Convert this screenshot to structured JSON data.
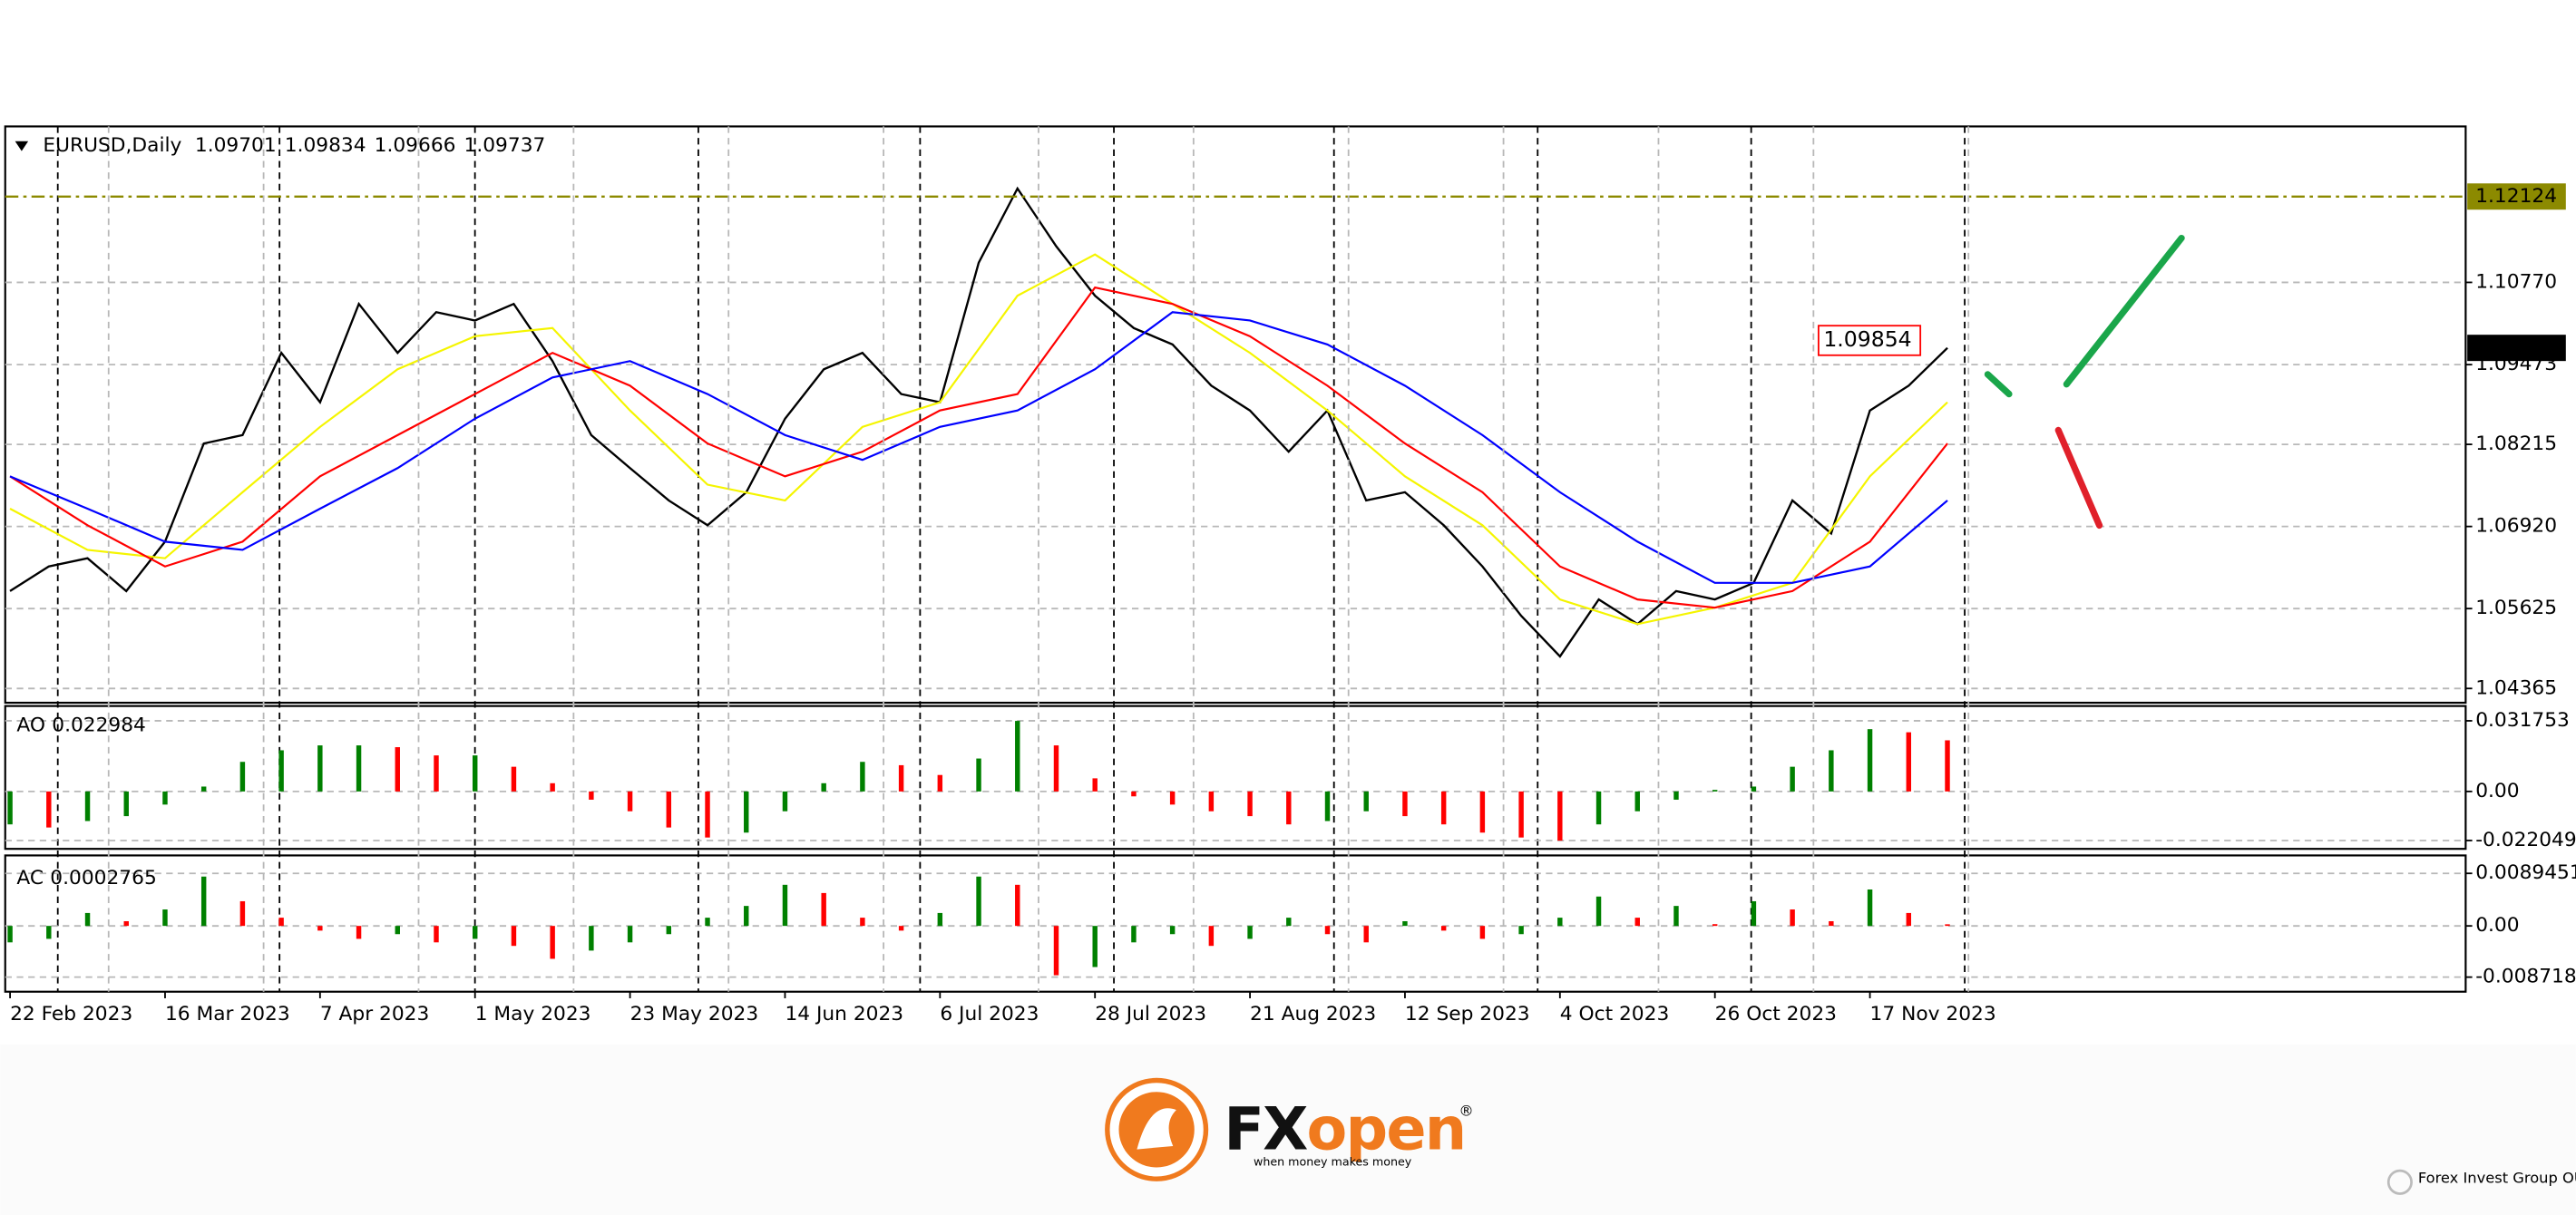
{
  "chart_data": [
    {
      "type": "line",
      "title": "EURUSD,Daily",
      "last_ohlc": [
        1.09701,
        1.09834,
        1.09666,
        1.09737
      ],
      "xlim": [
        -0.5,
        253.5
      ],
      "ylim": [
        1.0414,
        1.1323
      ],
      "yticks": [
        {
          "value": 1.1077,
          "label": "1.10770"
        },
        1.09473,
        1.08215,
        {
          "value": 1.0692,
          "label": "1.06920"
        },
        1.05625,
        1.04365
      ],
      "grid": true,
      "level": 1.12124,
      "level_color": "#8c8a00",
      "marker": 1.09854,
      "marker_color": "#ff0000",
      "series": [
        {
          "color": "#000000",
          "x": [
            0,
            4,
            8,
            12,
            16,
            20,
            24,
            28,
            32,
            36,
            40,
            44,
            48,
            52,
            56,
            60,
            64,
            68,
            72,
            76,
            80,
            84,
            88,
            92,
            96,
            100,
            104,
            108,
            112,
            116,
            120,
            124,
            128,
            132,
            136,
            140,
            144,
            148,
            152,
            156,
            160,
            164,
            168,
            172,
            176,
            180,
            184,
            188,
            192,
            196,
            200
          ],
          "values": [
            1.059,
            1.0629,
            1.0642,
            1.059,
            1.0668,
            1.0823,
            1.0836,
            1.0966,
            1.0888,
            1.1043,
            1.0966,
            1.103,
            1.1017,
            1.1043,
            1.0953,
            1.0836,
            1.0784,
            1.0733,
            1.0694,
            1.0746,
            1.0862,
            1.094,
            1.0966,
            1.0901,
            1.0888,
            1.1108,
            1.1225,
            1.1134,
            1.1056,
            1.1005,
            1.0979,
            1.0914,
            1.0875,
            1.081,
            1.0875,
            1.0733,
            1.0746,
            1.0694,
            1.0629,
            1.0551,
            1.0487,
            1.0577,
            1.0538,
            1.059,
            1.0577,
            1.0603,
            1.0733,
            1.0681,
            1.0875,
            1.0914,
            1.09737
          ]
        },
        {
          "color": "#f5f500",
          "x": [
            0,
            8,
            16,
            24,
            32,
            40,
            48,
            56,
            64,
            72,
            80,
            88,
            96,
            104,
            112,
            120,
            128,
            136,
            144,
            152,
            160,
            168,
            176,
            184,
            192,
            200
          ],
          "values": [
            1.072,
            1.0655,
            1.0642,
            1.0746,
            1.0849,
            1.094,
            1.0992,
            1.1005,
            1.0875,
            1.0758,
            1.0733,
            1.0849,
            1.0888,
            1.1056,
            1.1121,
            1.1043,
            1.0966,
            1.0875,
            1.0771,
            1.0694,
            1.0577,
            1.0538,
            1.0564,
            1.0603,
            1.0771,
            1.0888
          ]
        },
        {
          "color": "#ff0000",
          "x": [
            0,
            8,
            16,
            24,
            32,
            40,
            48,
            56,
            64,
            72,
            80,
            88,
            96,
            104,
            112,
            120,
            128,
            136,
            144,
            152,
            160,
            168,
            176,
            184,
            192,
            200
          ],
          "values": [
            1.0771,
            1.0694,
            1.0629,
            1.0668,
            1.0771,
            1.0836,
            1.0901,
            1.0966,
            1.0914,
            1.0823,
            1.0771,
            1.081,
            1.0875,
            1.0901,
            1.1069,
            1.1043,
            1.0992,
            1.0914,
            1.0823,
            1.0746,
            1.0629,
            1.0577,
            1.0564,
            1.059,
            1.0668,
            1.0823
          ]
        },
        {
          "color": "#0000ff",
          "x": [
            0,
            8,
            16,
            24,
            32,
            40,
            48,
            56,
            64,
            72,
            80,
            88,
            96,
            104,
            112,
            120,
            128,
            136,
            144,
            152,
            160,
            168,
            176,
            184,
            192,
            200
          ],
          "values": [
            1.0771,
            1.072,
            1.0668,
            1.0655,
            1.072,
            1.0784,
            1.0862,
            1.0927,
            1.0953,
            1.0901,
            1.0836,
            1.0797,
            1.0849,
            1.0875,
            1.094,
            1.103,
            1.1017,
            1.0979,
            1.0914,
            1.0836,
            1.0746,
            1.0668,
            1.0603,
            1.0603,
            1.0629,
            1.0733
          ]
        }
      ]
    },
    {
      "type": "bar",
      "title": "AO",
      "current": 0.022984,
      "up_color": "#008000",
      "down_color": "#ff0000",
      "xlim": [
        -0.5,
        253.5
      ],
      "ylim": [
        -0.0258,
        0.0384
      ],
      "yticks": [
        0.031753,
        {
          "value": 0,
          "label": "0.00"
        },
        -0.022049
      ],
      "grid": true,
      "x": [
        0,
        4,
        8,
        12,
        16,
        20,
        24,
        28,
        32,
        36,
        40,
        44,
        48,
        52,
        56,
        60,
        64,
        68,
        72,
        76,
        80,
        84,
        88,
        92,
        96,
        100,
        104,
        108,
        112,
        116,
        120,
        124,
        128,
        132,
        136,
        140,
        144,
        148,
        152,
        156,
        160,
        164,
        168,
        172,
        176,
        180,
        184,
        188,
        192,
        196,
        200
      ],
      "values": [
        -0.0148,
        -0.0162,
        -0.0133,
        -0.0111,
        -0.0059,
        0.0022,
        0.0133,
        0.0185,
        0.0207,
        0.0207,
        0.0199,
        0.0162,
        0.0162,
        0.0111,
        0.0037,
        -0.0037,
        -0.0089,
        -0.0162,
        -0.0207,
        -0.0185,
        -0.0089,
        0.0037,
        0.0133,
        0.0118,
        0.0074,
        0.0148,
        0.0317,
        0.0207,
        0.0059,
        -0.0022,
        -0.0059,
        -0.0089,
        -0.0111,
        -0.0148,
        -0.0133,
        -0.0089,
        -0.0111,
        -0.0148,
        -0.0185,
        -0.0207,
        -0.0221,
        -0.0148,
        -0.0089,
        -0.0037,
        0.0007,
        0.0022,
        0.0111,
        0.0185,
        0.028,
        0.0266,
        0.022984
      ]
    },
    {
      "type": "bar",
      "title": "AC",
      "current": 0.0002765,
      "up_color": "#008000",
      "down_color": "#ff0000",
      "xlim": [
        -0.5,
        253.5
      ],
      "ylim": [
        -0.0112,
        0.012
      ],
      "yticks": [
        0.0089451,
        {
          "value": 0,
          "label": "0.00"
        },
        -0.008718
      ],
      "grid": true,
      "x": [
        0,
        4,
        8,
        12,
        16,
        20,
        24,
        28,
        32,
        36,
        40,
        44,
        48,
        52,
        56,
        60,
        64,
        68,
        72,
        76,
        80,
        84,
        88,
        92,
        96,
        100,
        104,
        108,
        112,
        116,
        120,
        124,
        128,
        132,
        136,
        140,
        144,
        148,
        152,
        156,
        160,
        164,
        168,
        172,
        176,
        180,
        184,
        188,
        192,
        196,
        200
      ],
      "values": [
        -0.0028,
        -0.0022,
        0.0022,
        0.0008,
        0.0028,
        0.0084,
        0.0042,
        0.0014,
        -0.0008,
        -0.0022,
        -0.0014,
        -0.0028,
        -0.0022,
        -0.0034,
        -0.0056,
        -0.0042,
        -0.0028,
        -0.0014,
        0.0014,
        0.0034,
        0.007,
        0.0056,
        0.0014,
        -0.0008,
        0.0022,
        0.0084,
        0.007,
        -0.0084,
        -0.007,
        -0.0028,
        -0.0014,
        -0.0034,
        -0.0022,
        0.0014,
        -0.0014,
        -0.0028,
        0.0008,
        -0.0008,
        -0.0022,
        -0.0014,
        0.0014,
        0.005,
        0.0014,
        0.0034,
        0.0003,
        0.0042,
        0.0028,
        0.0008,
        0.0062,
        0.0022,
        0.0002765
      ],
      "xticks": [
        {
          "value": 0,
          "label": "22 Feb 2023"
        },
        {
          "value": 16,
          "label": "16 Mar 2023"
        },
        {
          "value": 32,
          "label": "7 Apr 2023"
        },
        {
          "value": 48,
          "label": "1 May 2023"
        },
        {
          "value": 64,
          "label": "23 May 2023"
        },
        {
          "value": 80,
          "label": "14 Jun 2023"
        },
        {
          "value": 96,
          "label": "6 Jul 2023"
        },
        {
          "value": 112,
          "label": "28 Jul 2023"
        },
        {
          "value": 128,
          "label": "21 Aug 2023"
        },
        {
          "value": 144,
          "label": "12 Sep 2023"
        },
        {
          "value": 160,
          "label": "4 Oct 2023"
        },
        {
          "value": 176,
          "label": "26 Oct 2023"
        },
        {
          "value": 192,
          "label": "17 Nov 2023"
        }
      ]
    }
  ],
  "footer": {
    "brand_a": "FX",
    "brand_b": "open",
    "registered": "®",
    "tagline": "when money makes money",
    "company": "Forex Invest Group OU"
  }
}
